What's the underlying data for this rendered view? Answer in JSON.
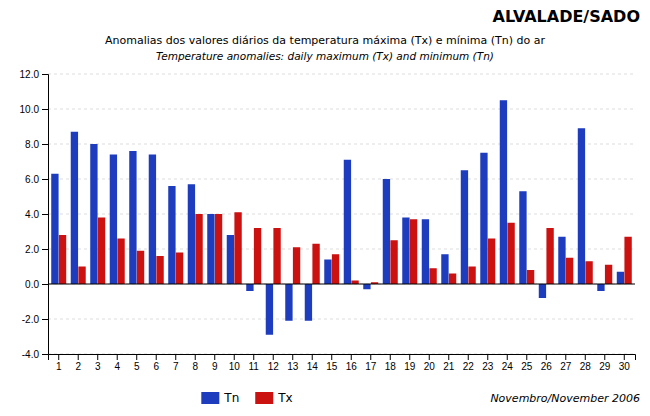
{
  "chart_data": {
    "type": "bar",
    "title": "ALVALADE/SADO",
    "subtitle": "Anomalias dos valores diários da temperatura máxima (Tx) e mínima (Tn) do ar",
    "annotations": [
      "Temperature anomalies: daily maximum  (Tx) and minimum (Tn)",
      "Novembro/November 2006"
    ],
    "categories": [
      "1",
      "2",
      "3",
      "4",
      "5",
      "6",
      "7",
      "8",
      "9",
      "10",
      "11",
      "12",
      "13",
      "14",
      "15",
      "16",
      "17",
      "18",
      "19",
      "20",
      "21",
      "22",
      "23",
      "24",
      "25",
      "26",
      "27",
      "28",
      "29",
      "30"
    ],
    "series": [
      {
        "name": "Tn",
        "color": "#1e3cbe",
        "values": [
          6.3,
          8.7,
          8.0,
          7.4,
          7.6,
          7.4,
          5.6,
          5.7,
          4.0,
          2.8,
          -0.4,
          -2.9,
          -2.1,
          -2.1,
          1.4,
          7.1,
          -0.3,
          6.0,
          3.8,
          3.7,
          1.7,
          6.5,
          7.5,
          10.5,
          5.3,
          -0.8,
          2.7,
          8.9,
          -0.4,
          0.7
        ]
      },
      {
        "name": "Tx",
        "color": "#cc1111",
        "values": [
          2.8,
          1.0,
          3.8,
          2.6,
          1.9,
          1.6,
          1.8,
          4.0,
          4.0,
          4.1,
          3.2,
          3.2,
          2.1,
          2.3,
          1.7,
          0.2,
          0.1,
          2.5,
          3.7,
          0.9,
          0.6,
          1.0,
          2.6,
          3.5,
          0.8,
          3.2,
          1.5,
          1.3,
          1.1,
          2.7
        ]
      }
    ],
    "ylim": [
      -4.0,
      12.0
    ],
    "yticks": [
      {
        "value": -4.0,
        "label": "-4.0"
      },
      {
        "value": -2.0,
        "label": "-2.0"
      },
      {
        "value": 0.0,
        "label": "0.0"
      },
      {
        "value": 2.0,
        "label": "2.0"
      },
      {
        "value": 4.0,
        "label": "4.0"
      },
      {
        "value": 6.0,
        "label": "6.0"
      },
      {
        "value": 8.0,
        "label": "8.0"
      },
      {
        "value": 10.0,
        "label": "10.0"
      },
      {
        "value": 12.0,
        "label": "12.0"
      }
    ],
    "grid": true,
    "legend": "bottom"
  }
}
